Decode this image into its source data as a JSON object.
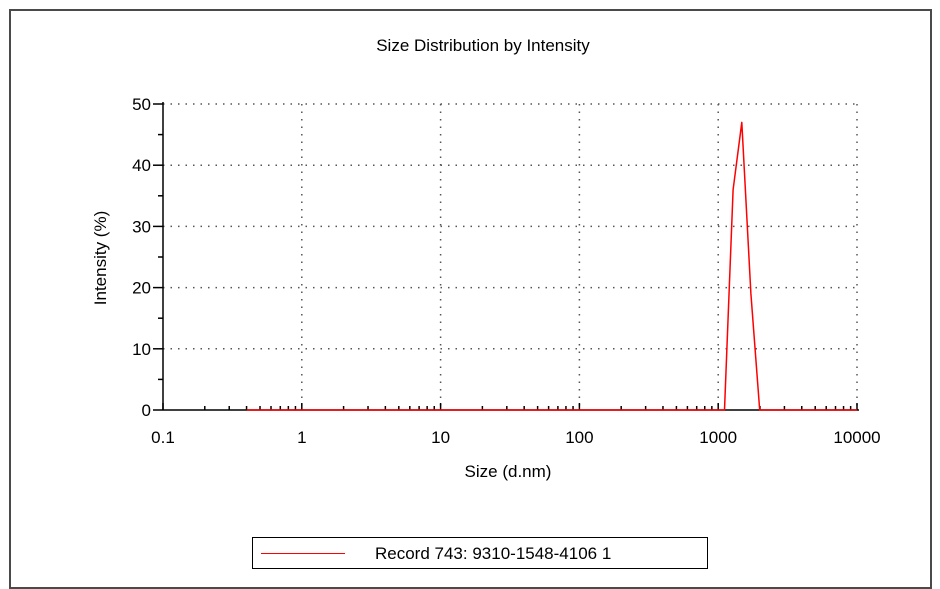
{
  "chart_data": {
    "type": "line",
    "title": "Size Distribution by Intensity",
    "xlabel": "Size (d.nm)",
    "ylabel": "Intensity (%)",
    "xscale": "log",
    "xlim": [
      0.1,
      10000
    ],
    "ylim": [
      0,
      50
    ],
    "x_ticks": [
      "0.1",
      "1",
      "10",
      "100",
      "1000",
      "10000"
    ],
    "y_ticks": [
      "0",
      "10",
      "20",
      "30",
      "40",
      "50"
    ],
    "grid": "dotted",
    "legend_position": "bottom",
    "series": [
      {
        "name": "Record 743: 9310-1548-4106 1",
        "color": "#ff0000",
        "x": [
          0.4,
          1,
          10,
          100,
          1000,
          1110,
          1280,
          1480,
          1720,
          1990,
          3000,
          10000
        ],
        "y": [
          0,
          0,
          0,
          0,
          0,
          0,
          36,
          47,
          19,
          0,
          0,
          0
        ]
      }
    ]
  }
}
